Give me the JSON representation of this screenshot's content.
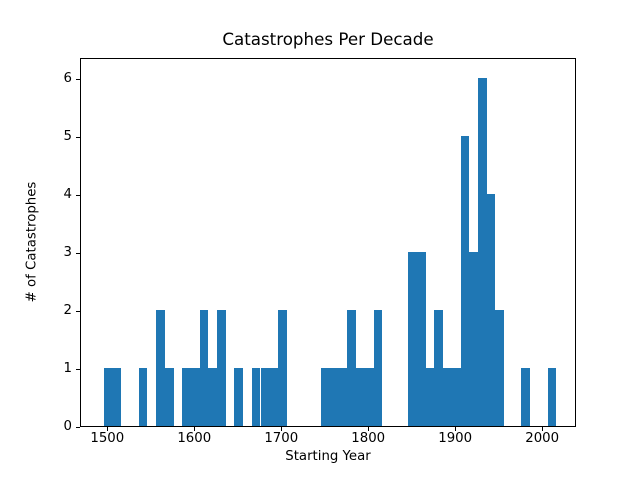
{
  "chart_data": {
    "type": "bar",
    "title": "Catastrophes Per Decade",
    "xlabel": "Starting Year",
    "ylabel": "# of Catastrophes",
    "bar_color": "#1f77b4",
    "bar_width_years": 10,
    "grid": false,
    "legend": false,
    "xlim": [
      1468.6,
      2038.9
    ],
    "ylim": [
      0,
      6.37
    ],
    "xticks": [
      1500,
      1600,
      1700,
      1800,
      1900,
      2000
    ],
    "yticks": [
      0,
      1,
      2,
      3,
      4,
      5,
      6
    ],
    "categories": [
      1500,
      1510,
      1520,
      1530,
      1540,
      1550,
      1560,
      1570,
      1580,
      1590,
      1600,
      1610,
      1620,
      1630,
      1640,
      1650,
      1660,
      1670,
      1680,
      1690,
      1700,
      1710,
      1720,
      1730,
      1740,
      1750,
      1760,
      1770,
      1780,
      1790,
      1800,
      1810,
      1820,
      1830,
      1840,
      1850,
      1860,
      1870,
      1880,
      1890,
      1900,
      1910,
      1920,
      1930,
      1940,
      1950,
      1960,
      1970,
      1980,
      1990,
      2000,
      2010
    ],
    "values": [
      1,
      1,
      0,
      0,
      1,
      0,
      2,
      1,
      0,
      1,
      1,
      2,
      1,
      2,
      0,
      1,
      0,
      1,
      1,
      1,
      2,
      0,
      0,
      0,
      0,
      1,
      1,
      1,
      2,
      1,
      1,
      2,
      0,
      0,
      0,
      3,
      3,
      1,
      2,
      1,
      1,
      5,
      3,
      6,
      4,
      2,
      0,
      0,
      1,
      0,
      0,
      1
    ]
  }
}
